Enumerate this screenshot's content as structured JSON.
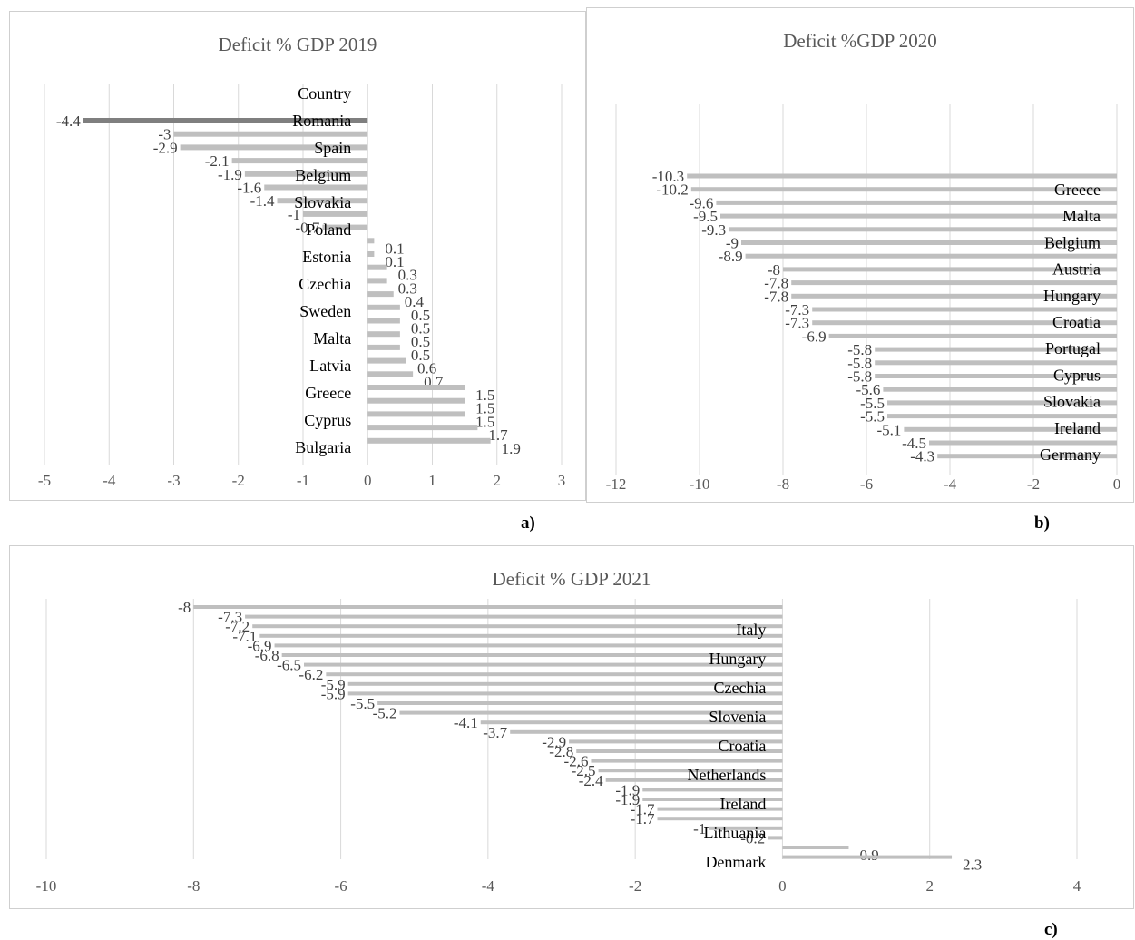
{
  "chart_data": [
    {
      "type": "bar",
      "orientation": "horizontal",
      "title": "Deficit % GDP 2019",
      "panel_label": "a)",
      "category_header": "Country",
      "xlim": [
        -5,
        3
      ],
      "xticks": [
        -5,
        -4,
        -3,
        -2,
        -1,
        0,
        1,
        2,
        3
      ],
      "grid": true,
      "highlight_color": "#7f7f7f",
      "bar_color": "#bfbfbf",
      "category_labels": [
        "Romania",
        "Spain",
        "Belgium",
        "Slovakia",
        "Poland",
        "Estonia",
        "Czechia",
        "Sweden",
        "Malta",
        "Latvia",
        "Greece",
        "Cyprus",
        "Bulgaria"
      ],
      "values": [
        -4.4,
        -3,
        -2.9,
        -2.1,
        -1.9,
        -1.6,
        -1.4,
        -1,
        -0.7,
        0.1,
        0.1,
        0.3,
        0.3,
        0.4,
        0.5,
        0.5,
        0.5,
        0.5,
        0.6,
        0.7,
        1.5,
        1.5,
        1.5,
        1.7,
        1.9
      ],
      "value_labels": [
        "-4.4",
        "-3",
        "-2.9",
        "-2.1",
        "-1.9",
        "-1.6",
        "-1.4",
        "-1",
        "-0.7",
        "0.1",
        "0.1",
        "0.3",
        "0.3",
        "0.4",
        "0.5",
        "0.5",
        "0.5",
        "0.5",
        "0.6",
        "0.7",
        "1.5",
        "1.5",
        "1.5",
        "1.7",
        "1.9"
      ]
    },
    {
      "type": "bar",
      "orientation": "horizontal",
      "title": "Deficit %GDP 2020",
      "panel_label": "b)",
      "xlim": [
        -12,
        0
      ],
      "xticks": [
        -12,
        -10,
        -8,
        -6,
        -4,
        -2,
        0
      ],
      "grid": true,
      "bar_color": "#bfbfbf",
      "category_labels": [
        "Greece",
        "Malta",
        "Belgium",
        "Austria",
        "Hungary",
        "Croatia",
        "Portugal",
        "Cyprus",
        "Slovakia",
        "Ireland",
        "Germany"
      ],
      "values": [
        -10.3,
        -10.2,
        -9.6,
        -9.5,
        -9.3,
        -9,
        -8.9,
        -8,
        -7.8,
        -7.8,
        -7.3,
        -7.3,
        -6.9,
        -5.8,
        -5.8,
        -5.8,
        -5.6,
        -5.5,
        -5.5,
        -5.1,
        -4.5,
        -4.3
      ],
      "value_labels": [
        "-10.3",
        "-10.2",
        "-9.6",
        "-9.5",
        "-9.3",
        "-9",
        "-8.9",
        "-8",
        "-7.8",
        "-7.8",
        "-7.3",
        "-7.3",
        "-6.9",
        "-5.8",
        "-5.8",
        "-5.8",
        "-5.6",
        "-5.5",
        "-5.5",
        "-5.1",
        "-4.5",
        "-4.3"
      ]
    },
    {
      "type": "bar",
      "orientation": "horizontal",
      "title": "Deficit % GDP 2021",
      "panel_label": "c)",
      "xlim": [
        -10,
        4
      ],
      "xticks": [
        -10,
        -8,
        -6,
        -4,
        -2,
        0,
        2,
        4
      ],
      "grid": true,
      "bar_color": "#bfbfbf",
      "category_labels": [
        "Italy",
        "Hungary",
        "Czechia",
        "Slovenia",
        "Croatia",
        "Netherlands",
        "Ireland",
        "Lithuania",
        "Denmark"
      ],
      "values": [
        -8,
        -7.3,
        -7.2,
        -7.1,
        -6.9,
        -6.8,
        -6.5,
        -6.2,
        -5.9,
        -5.9,
        -5.5,
        -5.2,
        -4.1,
        -3.7,
        -2.9,
        -2.8,
        -2.6,
        -2.5,
        -2.4,
        -1.9,
        -1.9,
        -1.7,
        -1.7,
        -1,
        -0.2,
        0.9,
        2.3
      ],
      "value_labels": [
        "-8",
        "-7.3",
        "-7.2",
        "-7.1",
        "-6.9",
        "-6.8",
        "-6.5",
        "-6.2",
        "-5.9",
        "-5.9",
        "-5.5",
        "-5.2",
        "-4.1",
        "-3.7",
        "-2.9",
        "-2.8",
        "-2.6",
        "-2.5",
        "-2.4",
        "-1.9",
        "-1.9",
        "-1.7",
        "-1.7",
        "-1",
        "-0.2",
        "0.9",
        "2.3"
      ]
    }
  ]
}
